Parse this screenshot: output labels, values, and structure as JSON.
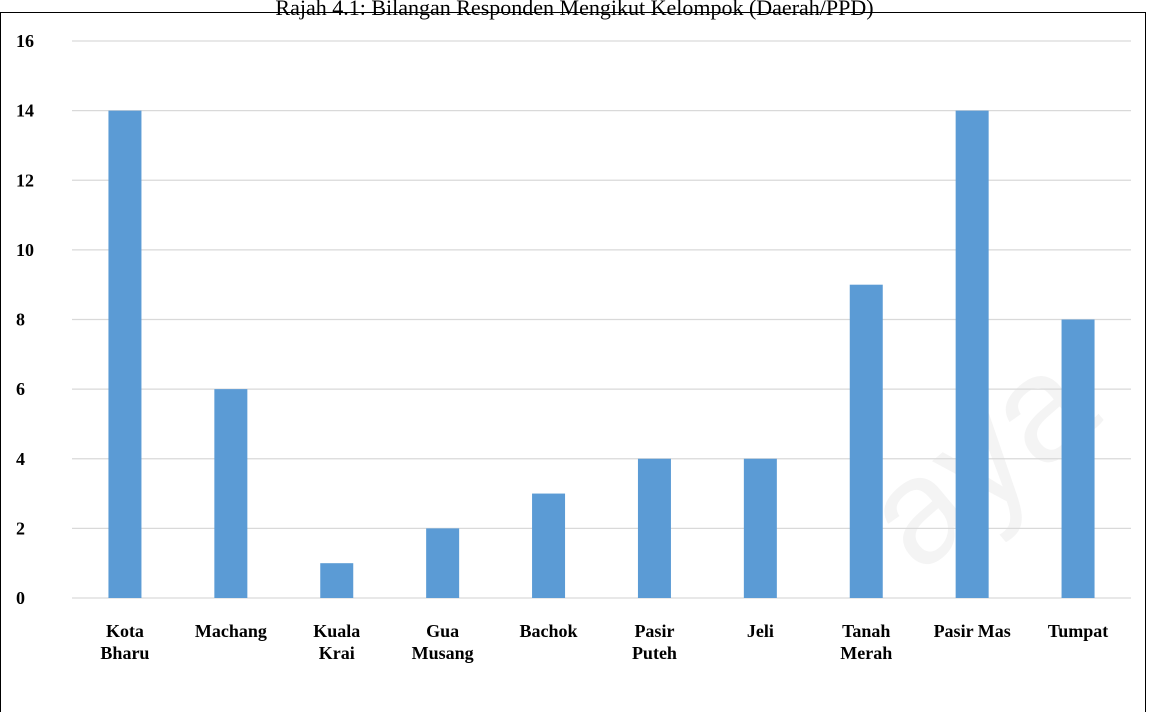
{
  "caption": "Rajah 4.1: Bilangan Responden Mengikut Kelompok (Daerah/PPD)",
  "watermark": "aya",
  "chart_data": {
    "type": "bar",
    "categories": [
      [
        "Kota",
        "Bharu"
      ],
      [
        "Machang"
      ],
      [
        "Kuala",
        "Krai"
      ],
      [
        "Gua",
        "Musang"
      ],
      [
        "Bachok"
      ],
      [
        "Pasir",
        "Puteh"
      ],
      [
        "Jeli"
      ],
      [
        "Tanah",
        "Merah"
      ],
      [
        "Pasir Mas"
      ],
      [
        "Tumpat"
      ]
    ],
    "values": [
      14,
      6,
      1,
      2,
      3,
      4,
      4,
      9,
      14,
      8
    ],
    "title": "Rajah 4.1: Bilangan Responden Mengikut Kelompok (Daerah/PPD)",
    "xlabel": "",
    "ylabel": "",
    "ylim": [
      0,
      16
    ],
    "yticks": [
      0,
      2,
      4,
      6,
      8,
      10,
      12,
      14,
      16
    ],
    "grid": true,
    "legend": "none",
    "bar_color": "#5b9bd5",
    "grid_color": "#d9d9d9"
  }
}
